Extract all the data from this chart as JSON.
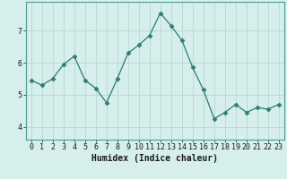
{
  "x": [
    0,
    1,
    2,
    3,
    4,
    5,
    6,
    7,
    8,
    9,
    10,
    11,
    12,
    13,
    14,
    15,
    16,
    17,
    18,
    19,
    20,
    21,
    22,
    23
  ],
  "y": [
    5.45,
    5.3,
    5.5,
    5.95,
    6.2,
    5.45,
    5.2,
    4.75,
    5.5,
    6.3,
    6.55,
    6.85,
    7.55,
    7.15,
    6.7,
    5.85,
    5.15,
    4.25,
    4.45,
    4.7,
    4.45,
    4.6,
    4.55,
    4.7
  ],
  "line_color": "#2d7d6f",
  "marker": "D",
  "marker_size": 2.5,
  "bg_color": "#d6eeec",
  "grid_color": "#b8d8d5",
  "xlabel": "Humidex (Indice chaleur)",
  "ylim": [
    3.6,
    7.9
  ],
  "xlim": [
    -0.5,
    23.5
  ],
  "yticks": [
    4,
    5,
    6,
    7
  ],
  "xticks": [
    0,
    1,
    2,
    3,
    4,
    5,
    6,
    7,
    8,
    9,
    10,
    11,
    12,
    13,
    14,
    15,
    16,
    17,
    18,
    19,
    20,
    21,
    22,
    23
  ],
  "label_fontsize": 7,
  "tick_fontsize": 6
}
